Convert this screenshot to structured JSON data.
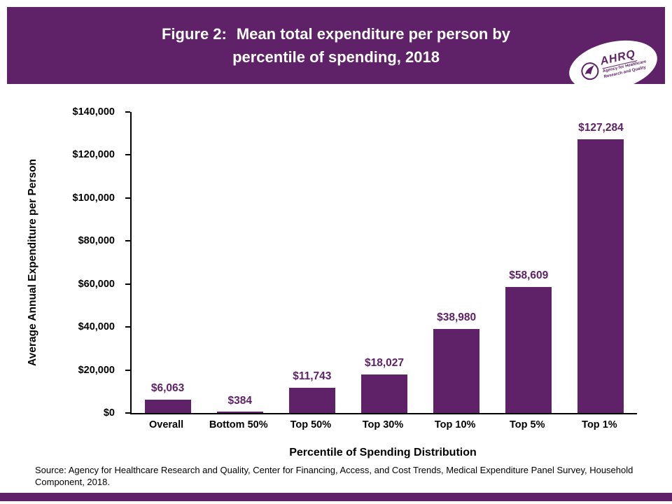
{
  "colors": {
    "accent": "#5f2167",
    "bar": "#5f2167",
    "header_bg": "#5f2167",
    "value_label": "#5f2167",
    "footer_bar": "#5f2167"
  },
  "header": {
    "title_prefix": "Figure 2:",
    "title_line1": "Mean total expenditure per person by",
    "title_line2": "percentile of spending, 2018"
  },
  "logo": {
    "name": "AHRQ",
    "tagline_line1": "Agency for Healthcare",
    "tagline_line2": "Research and Quality"
  },
  "chart_data": {
    "type": "bar",
    "title": "Figure 2: Mean total expenditure per person by percentile of spending, 2018",
    "categories": [
      "Overall",
      "Bottom 50%",
      "Top 50%",
      "Top 30%",
      "Top 10%",
      "Top 5%",
      "Top 1%"
    ],
    "values": [
      6063,
      384,
      11743,
      18027,
      38980,
      58609,
      127284
    ],
    "value_labels": [
      "$6,063",
      "$384",
      "$11,743",
      "$18,027",
      "$38,980",
      "$58,609",
      "$127,284"
    ],
    "xlabel": "Percentile of Spending Distribution",
    "ylabel": "Average Annual Expenditure per Person",
    "ylim": [
      0,
      140000
    ],
    "ytick_step": 20000,
    "ytick_labels": [
      "$0",
      "$20,000",
      "$40,000",
      "$60,000",
      "$80,000",
      "$100,000",
      "$120,000",
      "$140,000"
    ],
    "bar_color": "#5f2167",
    "grid": false,
    "legend": "none"
  },
  "source": {
    "text": "Source: Agency for Healthcare Research and Quality, Center for Financing, Access, and Cost Trends, Medical Expenditure Panel Survey, Household Component, 2018."
  }
}
